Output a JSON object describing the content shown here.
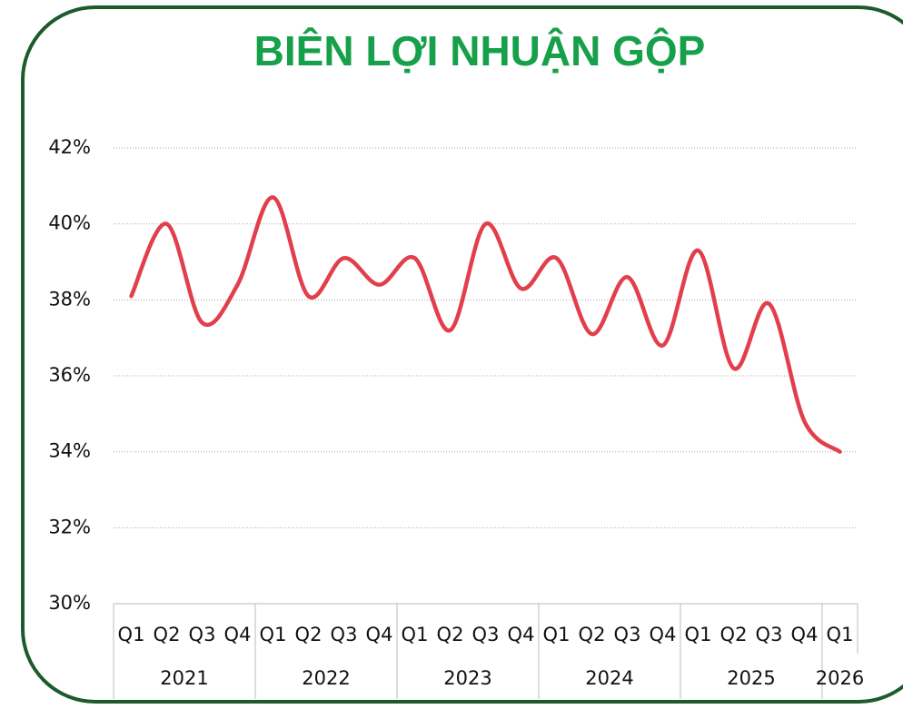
{
  "chart_data": {
    "type": "line",
    "title": "BIÊN LỢI NHUẬN GỘP",
    "categories": [
      "Q1",
      "Q2",
      "Q3",
      "Q4",
      "Q1",
      "Q2",
      "Q3",
      "Q4",
      "Q1",
      "Q2",
      "Q3",
      "Q4",
      "Q1",
      "Q2",
      "Q3",
      "Q4",
      "Q1",
      "Q2",
      "Q3",
      "Q4",
      "Q1"
    ],
    "groups": [
      {
        "name": "2021",
        "count": 4
      },
      {
        "name": "2022",
        "count": 4
      },
      {
        "name": "2023",
        "count": 4
      },
      {
        "name": "2024",
        "count": 4
      },
      {
        "name": "2025",
        "count": 4
      },
      {
        "name": "2026",
        "count": 1
      }
    ],
    "series": [
      {
        "color": "#e23f4c",
        "values": [
          38.1,
          40.0,
          37.4,
          38.4,
          40.7,
          38.1,
          39.1,
          38.4,
          39.1,
          37.2,
          40.0,
          38.3,
          39.1,
          37.1,
          38.6,
          36.8,
          39.3,
          36.2,
          37.9,
          34.8,
          34.0
        ]
      }
    ],
    "ylim": [
      30,
      42
    ],
    "yticks": [
      {
        "value": 30,
        "label": "30%"
      },
      {
        "value": 32,
        "label": "32%"
      },
      {
        "value": 34,
        "label": "34%"
      },
      {
        "value": 36,
        "label": "36%"
      },
      {
        "value": 38,
        "label": "38%"
      },
      {
        "value": 40,
        "label": "40%"
      },
      {
        "value": 42,
        "label": "42%"
      }
    ],
    "grid": true,
    "smooth": true
  }
}
